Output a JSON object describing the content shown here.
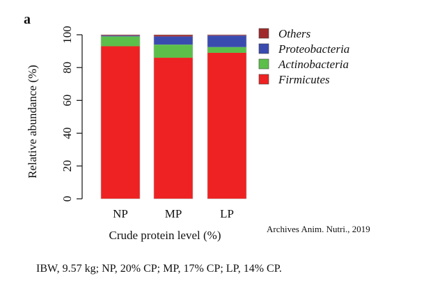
{
  "panel_label": "a",
  "source_note": "Archives Anim. Nutri., 2019",
  "caption": "IBW, 9.57 kg; NP, 20% CP; MP,  17% CP; LP,  14% CP.",
  "chart_data": {
    "type": "bar",
    "stacked": true,
    "categories": [
      "NP",
      "MP",
      "LP"
    ],
    "xlabel": "Crude protein level (%)",
    "ylabel": "Relative abundance (%)",
    "ylim": [
      0,
      100
    ],
    "yticks": [
      0,
      20,
      40,
      60,
      80,
      100
    ],
    "legend_position": "right",
    "series": [
      {
        "name": "Firmicutes",
        "color": "#ee2222",
        "values": [
          93,
          86,
          89
        ]
      },
      {
        "name": "Actinobacteria",
        "color": "#5cbf4a",
        "values": [
          6,
          8,
          3.5
        ]
      },
      {
        "name": "Proteobacteria",
        "color": "#3a4bb0",
        "values": [
          0.5,
          5,
          7
        ]
      },
      {
        "name": "Others",
        "color": "#a02a2a",
        "values": [
          0.5,
          1,
          0.5
        ]
      }
    ]
  }
}
